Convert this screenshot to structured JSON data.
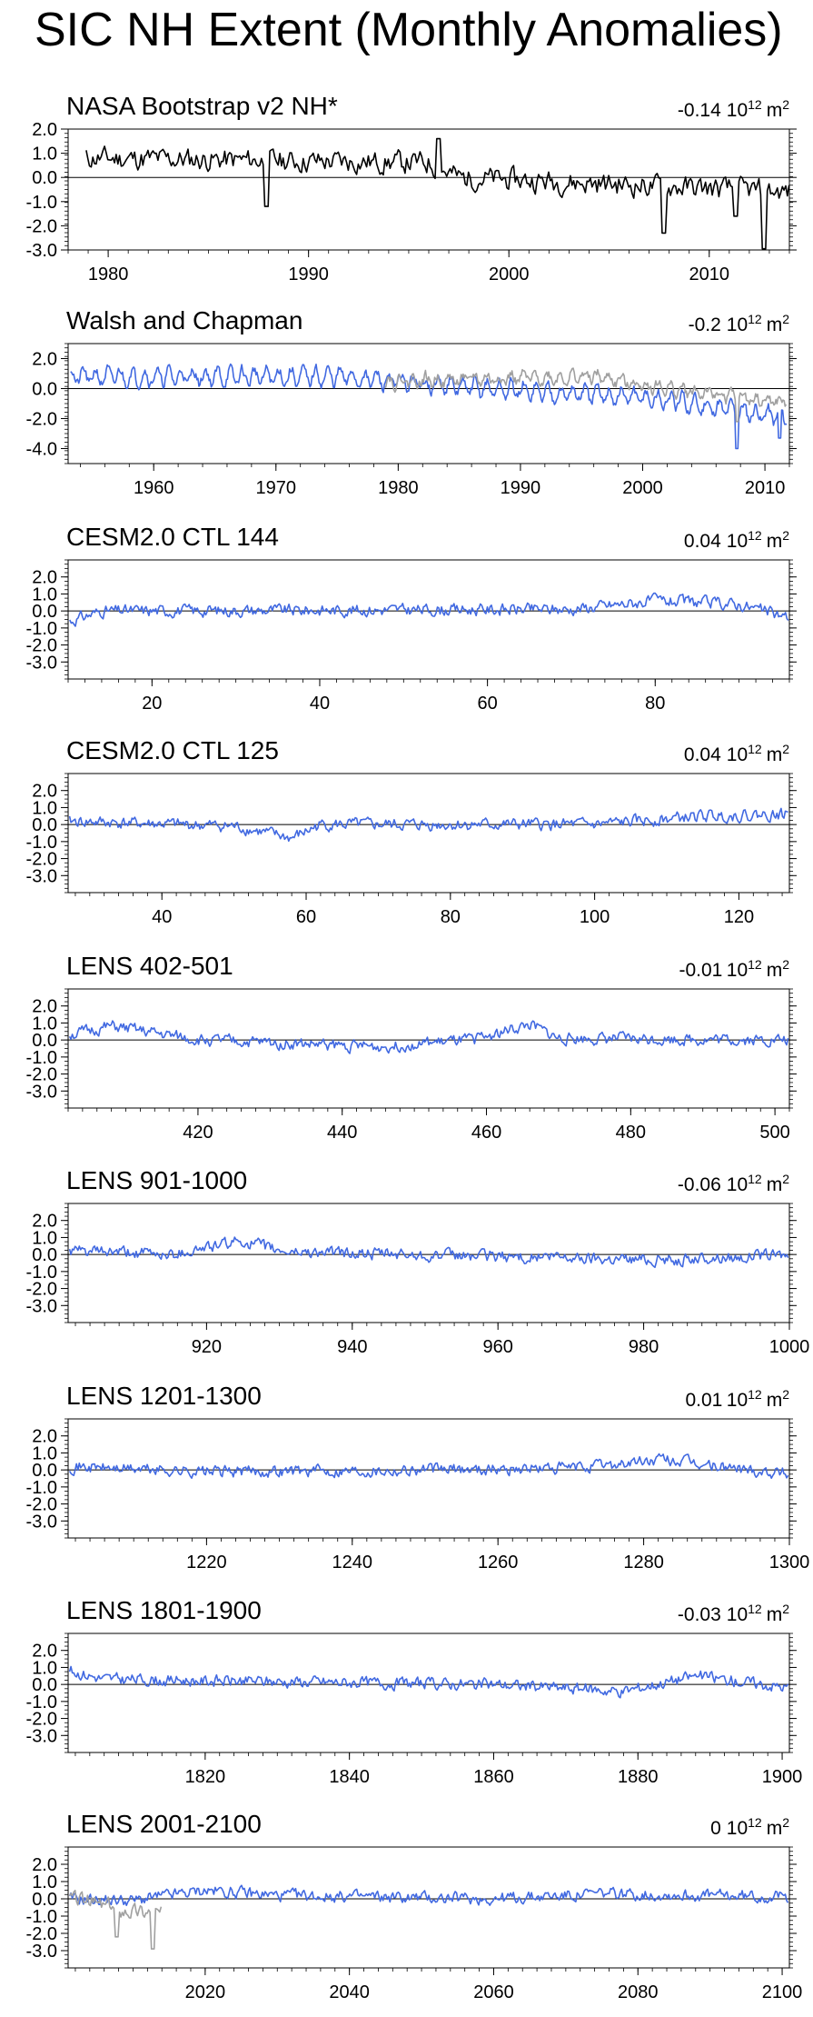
{
  "title": "SIC NH Extent (Monthly Anomalies)",
  "colors": {
    "observation": "#000000",
    "model": "#4169e1",
    "reference": "#a0a0a0",
    "zero_line": "#000000"
  },
  "chart_data": [
    {
      "type": "line",
      "title": "NASA Bootstrap v2 NH*",
      "mean_value": "-0.14",
      "mean_unit_base": "10",
      "mean_unit_exp": "12",
      "mean_unit_suffix": "m",
      "mean_unit_sup": "2",
      "xlim": [
        1978.0,
        2014.0
      ],
      "ylim": [
        -3.0,
        2.0
      ],
      "xticks": [
        1980,
        1990,
        2000,
        2010
      ],
      "xtick_labels": [
        "1980",
        "1990",
        "2000",
        "2010"
      ],
      "yticks": [
        2.0,
        1.0,
        0.0,
        -1.0,
        -2.0,
        -3.0
      ],
      "ytick_labels": [
        "2.0",
        "1.0",
        "0.0",
        "-1.0",
        "-2.0",
        "-3.0"
      ],
      "series": [
        {
          "color": "#000000",
          "trend": [
            [
              1978.9,
              0.8
            ],
            [
              1996,
              0.6
            ],
            [
              1997.5,
              0.0
            ],
            [
              2014,
              -0.6
            ]
          ],
          "noise": 0.4,
          "seed": 11,
          "spikes": [
            [
              1987.9,
              -1.2
            ],
            [
              1996.5,
              1.6
            ],
            [
              2007.7,
              -2.3
            ],
            [
              2011.3,
              -1.6
            ],
            [
              2012.7,
              -3.0
            ]
          ]
        }
      ]
    },
    {
      "type": "line",
      "title": "Walsh and Chapman",
      "mean_value": "-0.2",
      "mean_unit_base": "10",
      "mean_unit_exp": "12",
      "mean_unit_suffix": "m",
      "mean_unit_sup": "2",
      "xlim": [
        1953.0,
        2012.0
      ],
      "ylim": [
        -5.0,
        3.0
      ],
      "xticks": [
        1960,
        1970,
        1980,
        1990,
        2000,
        2010
      ],
      "xtick_labels": [
        "1960",
        "1970",
        "1980",
        "1990",
        "2000",
        "2010"
      ],
      "yticks": [
        2.0,
        0.0,
        -2.0,
        -4.0
      ],
      "ytick_labels": [
        "2.0",
        "0.0",
        "-2.0",
        "-4.0"
      ],
      "series": [
        {
          "color": "#4169e1",
          "trend": [
            [
              1953.2,
              0.8
            ],
            [
              1975,
              0.8
            ],
            [
              1985,
              0.1
            ],
            [
              2000,
              -0.6
            ],
            [
              2011.8,
              -1.9
            ]
          ],
          "noise": 0.3,
          "seed": 21,
          "seasonal": 0.5,
          "spikes": [
            [
              2007.7,
              -4.0
            ],
            [
              2011.2,
              -3.3
            ]
          ]
        },
        {
          "color": "#a0a0a0",
          "trend": [
            [
              1978.9,
              0.5
            ],
            [
              1996,
              0.8
            ],
            [
              2002,
              0.0
            ],
            [
              2011.8,
              -1.0
            ]
          ],
          "noise": 0.3,
          "seed": 22,
          "seasonal": 0.3,
          "spikes": [
            [
              2007.7,
              -2.2
            ]
          ]
        }
      ]
    },
    {
      "type": "line",
      "title": "CESM2.0 CTL 144",
      "mean_value": "0.04",
      "mean_unit_base": "10",
      "mean_unit_exp": "12",
      "mean_unit_suffix": "m",
      "mean_unit_sup": "2",
      "xlim": [
        10.0,
        96.0
      ],
      "ylim": [
        -4.0,
        3.0
      ],
      "xticks": [
        20,
        40,
        60,
        80
      ],
      "xtick_labels": [
        "20",
        "40",
        "60",
        "80"
      ],
      "yticks": [
        2.0,
        1.0,
        0.0,
        -1.0,
        -2.0,
        -3.0
      ],
      "ytick_labels": [
        "2.0",
        "1.0",
        "0.0",
        "-1.0",
        "-2.0",
        "-3.0"
      ],
      "series": [
        {
          "color": "#4169e1",
          "trend": [
            [
              10.2,
              -0.6
            ],
            [
              14,
              0.0
            ],
            [
              70,
              0.1
            ],
            [
              80,
              0.6
            ],
            [
              90,
              0.4
            ],
            [
              96,
              -0.4
            ]
          ],
          "noise": 0.3,
          "seed": 31
        }
      ]
    },
    {
      "type": "line",
      "title": "CESM2.0 CTL 125",
      "mean_value": "0.04",
      "mean_unit_base": "10",
      "mean_unit_exp": "12",
      "mean_unit_suffix": "m",
      "mean_unit_sup": "2",
      "xlim": [
        27.0,
        127.0
      ],
      "ylim": [
        -4.0,
        3.0
      ],
      "xticks": [
        40,
        60,
        80,
        100,
        120
      ],
      "xtick_labels": [
        "40",
        "60",
        "80",
        "100",
        "120"
      ],
      "yticks": [
        2.0,
        1.0,
        0.0,
        -1.0,
        -2.0,
        -3.0
      ],
      "ytick_labels": [
        "2.0",
        "1.0",
        "0.0",
        "-1.0",
        "-2.0",
        "-3.0"
      ],
      "series": [
        {
          "color": "#4169e1",
          "trend": [
            [
              27.2,
              0.2
            ],
            [
              50,
              -0.1
            ],
            [
              58,
              -0.8
            ],
            [
              62,
              0.0
            ],
            [
              100,
              0.0
            ],
            [
              115,
              0.5
            ],
            [
              127,
              0.6
            ]
          ],
          "noise": 0.3,
          "seed": 41
        }
      ]
    },
    {
      "type": "line",
      "title": "LENS 402-501",
      "mean_value": "-0.01",
      "mean_unit_base": "10",
      "mean_unit_exp": "12",
      "mean_unit_suffix": "m",
      "mean_unit_sup": "2",
      "xlim": [
        402.0,
        502.0
      ],
      "ylim": [
        -4.0,
        3.0
      ],
      "xticks": [
        420,
        440,
        460,
        480,
        500
      ],
      "xtick_labels": [
        "420",
        "440",
        "460",
        "480",
        "500"
      ],
      "yticks": [
        2.0,
        1.0,
        0.0,
        -1.0,
        -2.0,
        -3.0
      ],
      "ytick_labels": [
        "2.0",
        "1.0",
        "0.0",
        "-1.0",
        "-2.0",
        "-3.0"
      ],
      "series": [
        {
          "color": "#4169e1",
          "trend": [
            [
              402.2,
              0.3
            ],
            [
              408,
              0.8
            ],
            [
              414,
              0.4
            ],
            [
              420,
              0.0
            ],
            [
              445,
              -0.4
            ],
            [
              458,
              0.0
            ],
            [
              466,
              0.9
            ],
            [
              470,
              0.1
            ],
            [
              502,
              0.0
            ]
          ],
          "noise": 0.3,
          "seed": 51
        }
      ]
    },
    {
      "type": "line",
      "title": "LENS 901-1000",
      "mean_value": "-0.06",
      "mean_unit_base": "10",
      "mean_unit_exp": "12",
      "mean_unit_suffix": "m",
      "mean_unit_sup": "2",
      "xlim": [
        901.0,
        1000.0
      ],
      "ylim": [
        -4.0,
        3.0
      ],
      "xticks": [
        920,
        940,
        960,
        980,
        1000
      ],
      "xtick_labels": [
        "920",
        "940",
        "960",
        "980",
        "1000"
      ],
      "yticks": [
        2.0,
        1.0,
        0.0,
        -1.0,
        -2.0,
        -3.0
      ],
      "ytick_labels": [
        "2.0",
        "1.0",
        "0.0",
        "-1.0",
        "-2.0",
        "-3.0"
      ],
      "series": [
        {
          "color": "#4169e1",
          "trend": [
            [
              901.2,
              0.2
            ],
            [
              915,
              0.0
            ],
            [
              925,
              0.8
            ],
            [
              930,
              0.2
            ],
            [
              945,
              0.0
            ],
            [
              985,
              -0.3
            ],
            [
              1000,
              0.0
            ]
          ],
          "noise": 0.3,
          "seed": 61
        }
      ]
    },
    {
      "type": "line",
      "title": "LENS 1201-1300",
      "mean_value": "0.01",
      "mean_unit_base": "10",
      "mean_unit_exp": "12",
      "mean_unit_suffix": "m",
      "mean_unit_sup": "2",
      "xlim": [
        1201.0,
        1300.0
      ],
      "ylim": [
        -4.0,
        3.0
      ],
      "xticks": [
        1220,
        1240,
        1260,
        1280,
        1300
      ],
      "xtick_labels": [
        "1220",
        "1240",
        "1260",
        "1280",
        "1300"
      ],
      "yticks": [
        2.0,
        1.0,
        0.0,
        -1.0,
        -2.0,
        -3.0
      ],
      "ytick_labels": [
        "2.0",
        "1.0",
        "0.0",
        "-1.0",
        "-2.0",
        "-3.0"
      ],
      "series": [
        {
          "color": "#4169e1",
          "trend": [
            [
              1201.2,
              0.2
            ],
            [
              1220,
              -0.1
            ],
            [
              1270,
              0.1
            ],
            [
              1283,
              0.6
            ],
            [
              1290,
              0.2
            ],
            [
              1300,
              -0.2
            ]
          ],
          "noise": 0.3,
          "seed": 71
        }
      ]
    },
    {
      "type": "line",
      "title": "LENS 1801-1900",
      "mean_value": "-0.03",
      "mean_unit_base": "10",
      "mean_unit_exp": "12",
      "mean_unit_suffix": "m",
      "mean_unit_sup": "2",
      "xlim": [
        1801.0,
        1901.0
      ],
      "ylim": [
        -4.0,
        3.0
      ],
      "xticks": [
        1820,
        1840,
        1860,
        1880,
        1900
      ],
      "xtick_labels": [
        "1820",
        "1840",
        "1860",
        "1880",
        "1900"
      ],
      "yticks": [
        2.0,
        1.0,
        0.0,
        -1.0,
        -2.0,
        -3.0
      ],
      "ytick_labels": [
        "2.0",
        "1.0",
        "0.0",
        "-1.0",
        "-2.0",
        "-3.0"
      ],
      "series": [
        {
          "color": "#4169e1",
          "trend": [
            [
              1801.2,
              0.8
            ],
            [
              1806,
              0.3
            ],
            [
              1860,
              0.0
            ],
            [
              1878,
              -0.4
            ],
            [
              1888,
              0.5
            ],
            [
              1901,
              -0.2
            ]
          ],
          "noise": 0.3,
          "seed": 81
        }
      ]
    },
    {
      "type": "line",
      "title": "LENS 2001-2100",
      "mean_value": "0",
      "mean_unit_base": "10",
      "mean_unit_exp": "12",
      "mean_unit_suffix": "m",
      "mean_unit_sup": "2",
      "xlim": [
        2001.0,
        2101.0
      ],
      "ylim": [
        -4.0,
        3.0
      ],
      "xticks": [
        2020,
        2040,
        2060,
        2080,
        2100
      ],
      "xtick_labels": [
        "2020",
        "2040",
        "2060",
        "2080",
        "2100"
      ],
      "yticks": [
        2.0,
        1.0,
        0.0,
        -1.0,
        -2.0,
        -3.0
      ],
      "ytick_labels": [
        "2.0",
        "1.0",
        "0.0",
        "-1.0",
        "-2.0",
        "-3.0"
      ],
      "series": [
        {
          "color": "#4169e1",
          "trend": [
            [
              2001.2,
              0.0
            ],
            [
              2010,
              -0.1
            ],
            [
              2020,
              0.5
            ],
            [
              2030,
              0.2
            ],
            [
              2060,
              0.0
            ],
            [
              2075,
              0.3
            ],
            [
              2101,
              0.1
            ]
          ],
          "noise": 0.3,
          "seed": 91
        },
        {
          "color": "#a0a0a0",
          "trend": [
            [
              2001.2,
              0.1
            ],
            [
              2008,
              -0.6
            ],
            [
              2014,
              -0.8
            ]
          ],
          "noise": 0.4,
          "seed": 92,
          "spikes": [
            [
              2007.7,
              -2.2
            ],
            [
              2012.7,
              -2.9
            ]
          ]
        }
      ]
    }
  ]
}
